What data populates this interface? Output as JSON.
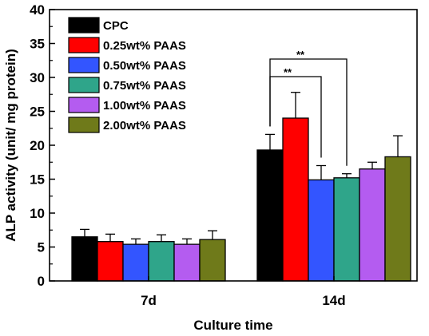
{
  "chart_data": {
    "type": "bar",
    "title": "",
    "xlabel": "Culture time",
    "ylabel": "ALP activity (unit/ mg protein)",
    "ylim": [
      0,
      40
    ],
    "yticks": [
      "0",
      "5",
      "10",
      "15",
      "20",
      "25",
      "30",
      "35",
      "40"
    ],
    "categories": [
      "7d",
      "14d"
    ],
    "legend_position": "top-left",
    "grid": false,
    "series": [
      {
        "name": "CPC",
        "color": "#000000",
        "values": [
          6.5,
          19.3
        ],
        "errors": [
          1.1,
          2.3
        ]
      },
      {
        "name": "0.25wt% PAAS",
        "color": "#ff0000",
        "values": [
          5.8,
          24.0
        ],
        "errors": [
          1.1,
          3.8
        ]
      },
      {
        "name": "0.50wt% PAAS",
        "color": "#3355ff",
        "values": [
          5.4,
          14.9
        ],
        "errors": [
          0.8,
          2.1
        ]
      },
      {
        "name": "0.75wt% PAAS",
        "color": "#2fa58a",
        "values": [
          5.8,
          15.2
        ],
        "errors": [
          1.0,
          0.6
        ]
      },
      {
        "name": "1.00wt% PAAS",
        "color": "#b45cf0",
        "values": [
          5.4,
          16.5
        ],
        "errors": [
          0.8,
          1.0
        ]
      },
      {
        "name": "2.00wt% PAAS",
        "color": "#6f7a1a",
        "values": [
          6.1,
          18.3
        ],
        "errors": [
          1.3,
          3.1
        ]
      }
    ],
    "annotations": [
      {
        "text": "**",
        "category": "14d",
        "from_series": 0,
        "to_series": 3
      },
      {
        "text": "**",
        "category": "14d",
        "from_series": 0,
        "to_series": 2
      }
    ]
  }
}
